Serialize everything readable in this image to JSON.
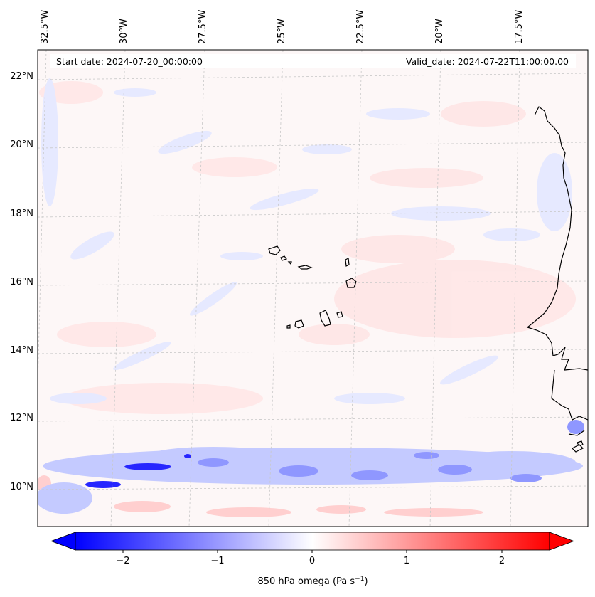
{
  "map": {
    "header": {
      "start_date": "Start date: 2024-07-20_00:00:00",
      "valid_date": "Valid_date: 2024-07-22T11:00:00.00"
    },
    "lon_labels": [
      "32.5°W",
      "30°W",
      "27.5°W",
      "25°W",
      "22.5°W",
      "20°W",
      "17.5°W"
    ],
    "lat_labels": [
      "22°N",
      "20°N",
      "18°N",
      "16°N",
      "14°N",
      "12°N",
      "10°N"
    ],
    "colorbar": {
      "ticks": [
        "−2",
        "−1",
        "0",
        "1",
        "2"
      ],
      "label": "850 hPa omega (Pa s",
      "label_sup": "−1",
      "label_close": ")",
      "min": -2.6,
      "max": 2.6,
      "colors": {
        "negative": "#0000ff",
        "neutral": "#ffffff",
        "positive": "#ff0000"
      }
    },
    "field_colors": {
      "background": "#fdf8f8",
      "weak_ascent": "#e8ebff",
      "moderate_ascent": "#bcc4ff",
      "strong_ascent": "#3a3aff",
      "weak_descent": "#ffe9e9",
      "moderate_descent": "#ffcfcf"
    }
  }
}
